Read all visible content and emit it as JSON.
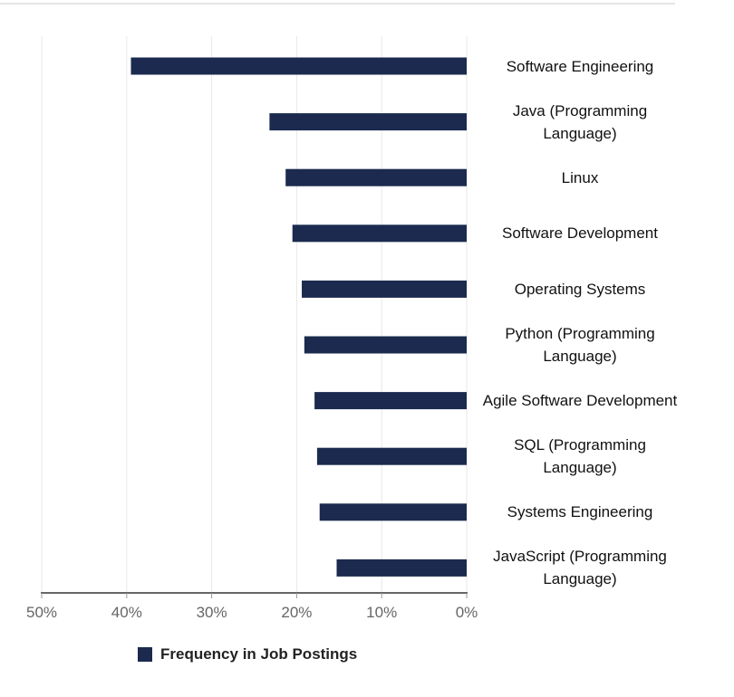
{
  "chart_data": {
    "type": "bar",
    "orientation": "horizontal",
    "x_direction": "reversed",
    "categories": [
      "Software Engineering",
      "Java (Programming Language)",
      "Linux",
      "Software Development",
      "Operating Systems",
      "Python (Programming Language)",
      "Agile Software Development",
      "SQL (Programming Language)",
      "Systems Engineering",
      "JavaScript (Programming Language)"
    ],
    "series": [
      {
        "name": "Frequency in Job Postings",
        "values": [
          39.5,
          23.2,
          21.3,
          20.5,
          19.4,
          19.1,
          17.9,
          17.6,
          17.3,
          15.3
        ]
      }
    ],
    "xlim": [
      0,
      50
    ],
    "x_ticks": [
      "50%",
      "40%",
      "30%",
      "20%",
      "10%",
      "0%"
    ],
    "x_tick_values": [
      50,
      40,
      30,
      20,
      10,
      0
    ],
    "grid": true,
    "legend": "bottom-left",
    "colors": {
      "bar": "#1b2a4e",
      "grid": "#e8e8e8",
      "axis": "#333333"
    }
  }
}
